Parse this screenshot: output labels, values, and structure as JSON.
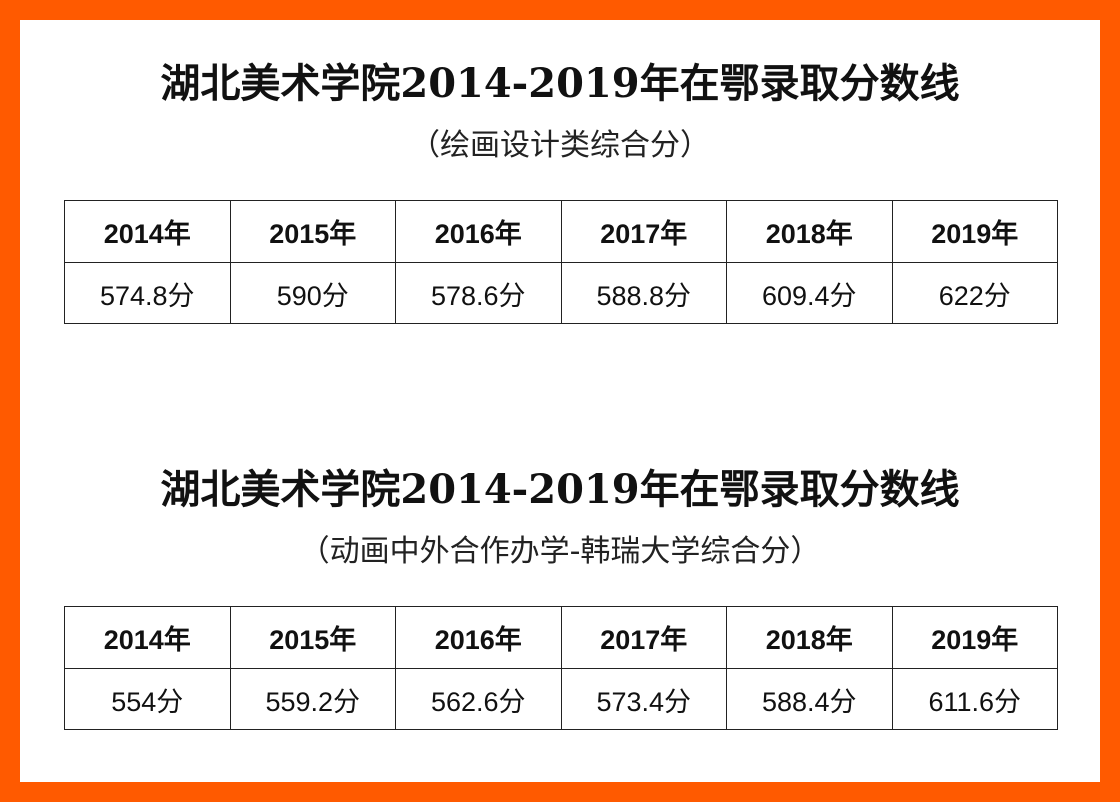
{
  "tables": [
    {
      "title": "湖北美术学院2014-2019年在鄂录取分数线",
      "subtitle": "（绘画设计类综合分）",
      "years": [
        "2014年",
        "2015年",
        "2016年",
        "2017年",
        "2018年",
        "2019年"
      ],
      "scores": [
        "574.8分",
        "590分",
        "578.6分",
        "588.8分",
        "609.4分",
        "622分"
      ]
    },
    {
      "title": "湖北美术学院2014-2019年在鄂录取分数线",
      "subtitle": "（动画中外合作办学-韩瑞大学综合分）",
      "years": [
        "2014年",
        "2015年",
        "2016年",
        "2017年",
        "2018年",
        "2019年"
      ],
      "scores": [
        "554分",
        "559.2分",
        "562.6分",
        "573.4分",
        "588.4分",
        "611.6分"
      ]
    }
  ],
  "colors": {
    "border_accent": "#ff5a00",
    "background": "#ffffff",
    "text": "#111111"
  }
}
